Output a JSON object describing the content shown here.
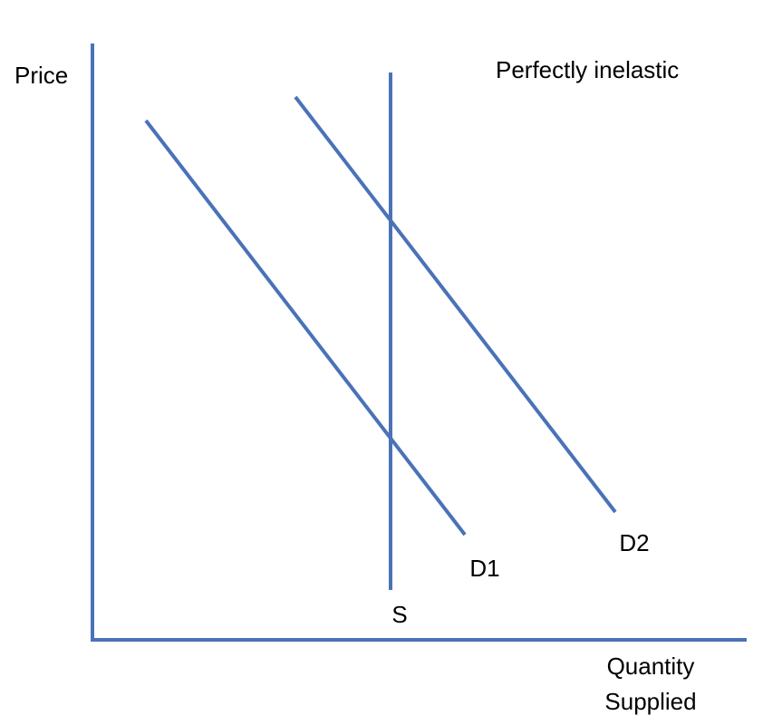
{
  "title": "Perfectly inelastic",
  "axes": {
    "y_label": "Price",
    "x_label": [
      "Quantity",
      "Supplied"
    ]
  },
  "curves": {
    "supply": "S",
    "demand": [
      "D1",
      "D2"
    ]
  }
}
